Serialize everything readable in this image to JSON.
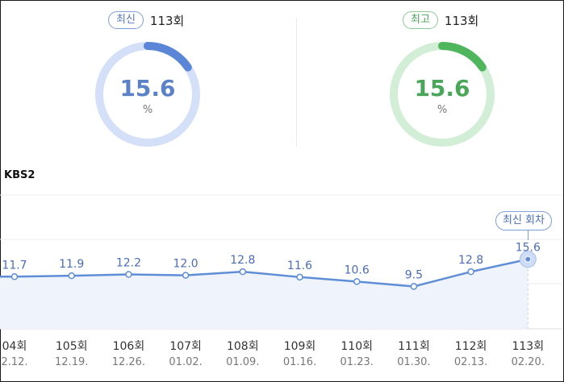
{
  "summary": {
    "latest": {
      "badge": "최신",
      "episode": "113회",
      "value": "15.6",
      "unit": "%",
      "fill_fraction": 0.156,
      "color": "#5b86d8",
      "track_color": "#d4e0f7"
    },
    "highest": {
      "badge": "최고",
      "episode": "113회",
      "value": "15.6",
      "unit": "%",
      "fill_fraction": 0.156,
      "color": "#4fb65e",
      "track_color": "#d3eed6"
    }
  },
  "channel": "KBS2",
  "latest_tag": "최신 회차",
  "chart_data": {
    "type": "area",
    "categories": [
      "04회",
      "105회",
      "106회",
      "107회",
      "108회",
      "109회",
      "110회",
      "111회",
      "112회",
      "113회"
    ],
    "dates": [
      "2.12.",
      "12.19.",
      "12.26.",
      "01.02.",
      "01.09.",
      "01.16.",
      "01.23.",
      "01.30.",
      "02.13.",
      "02.20."
    ],
    "series": [
      {
        "values": [
          11.7,
          11.9,
          12.2,
          12.0,
          12.8,
          11.6,
          10.6,
          9.5,
          12.8,
          15.6
        ]
      }
    ],
    "labels": [
      "11.7",
      "11.9",
      "12.2",
      "12.0",
      "12.8",
      "11.6",
      "10.6",
      "9.5",
      "12.8",
      "15.6"
    ],
    "ylim": [
      0,
      30
    ],
    "grid": true,
    "line_color": "#5f8ed6",
    "fill_color": "#eef3fc"
  }
}
